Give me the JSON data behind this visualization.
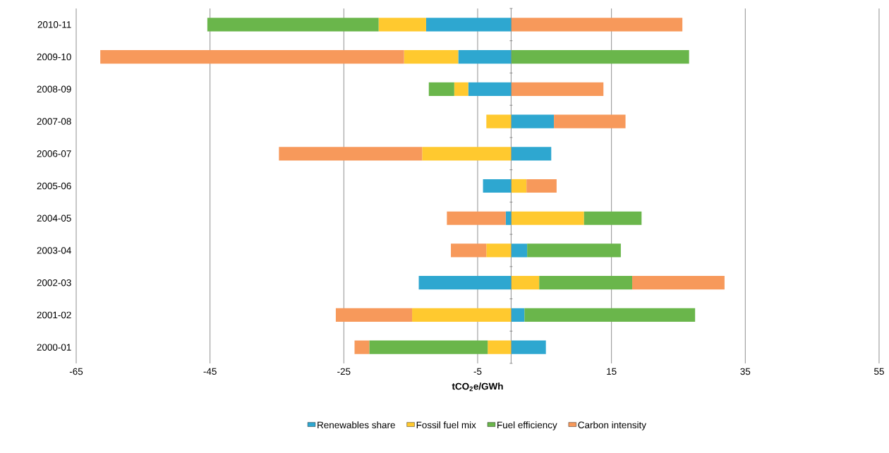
{
  "chart_data": {
    "type": "bar",
    "orientation": "horizontal",
    "stacked": true,
    "categories": [
      "2010-11",
      "2009-10",
      "2008-09",
      "2007-08",
      "2006-07",
      "2005-06",
      "2004-05",
      "2003-04",
      "2002-03",
      "2001-02",
      "2000-01"
    ],
    "series": [
      {
        "name": "Renewables share",
        "color": "#2ea7d0",
        "values": [
          -12.7,
          -7.9,
          -6.4,
          6.4,
          6.0,
          -4.2,
          -0.8,
          2.4,
          -13.8,
          2.0,
          5.2
        ]
      },
      {
        "name": "Fossil fuel mix",
        "color": "#ffc92f",
        "values": [
          -7.1,
          -8.1,
          -2.1,
          -3.7,
          -13.3,
          2.3,
          10.9,
          -3.7,
          4.2,
          -14.8,
          -3.5
        ]
      },
      {
        "name": "Fuel efficiency",
        "color": "#6ab64b",
        "values": [
          -25.6,
          26.6,
          -3.8,
          0,
          0,
          0,
          8.6,
          14.0,
          13.9,
          25.5,
          -17.7
        ]
      },
      {
        "name": "Carbon intensity",
        "color": "#f7995b",
        "values": [
          25.6,
          -45.4,
          13.8,
          10.7,
          -21.4,
          4.5,
          -8.8,
          -5.3,
          13.8,
          -11.4,
          -2.2
        ]
      }
    ],
    "xlabel": "**tCO$_{2}$e/GWh**",
    "xlim": [
      -65,
      55
    ],
    "xticks": [
      -65,
      -45,
      -25,
      -5,
      15,
      35,
      55
    ],
    "grid": "x",
    "legend": "bottom"
  }
}
